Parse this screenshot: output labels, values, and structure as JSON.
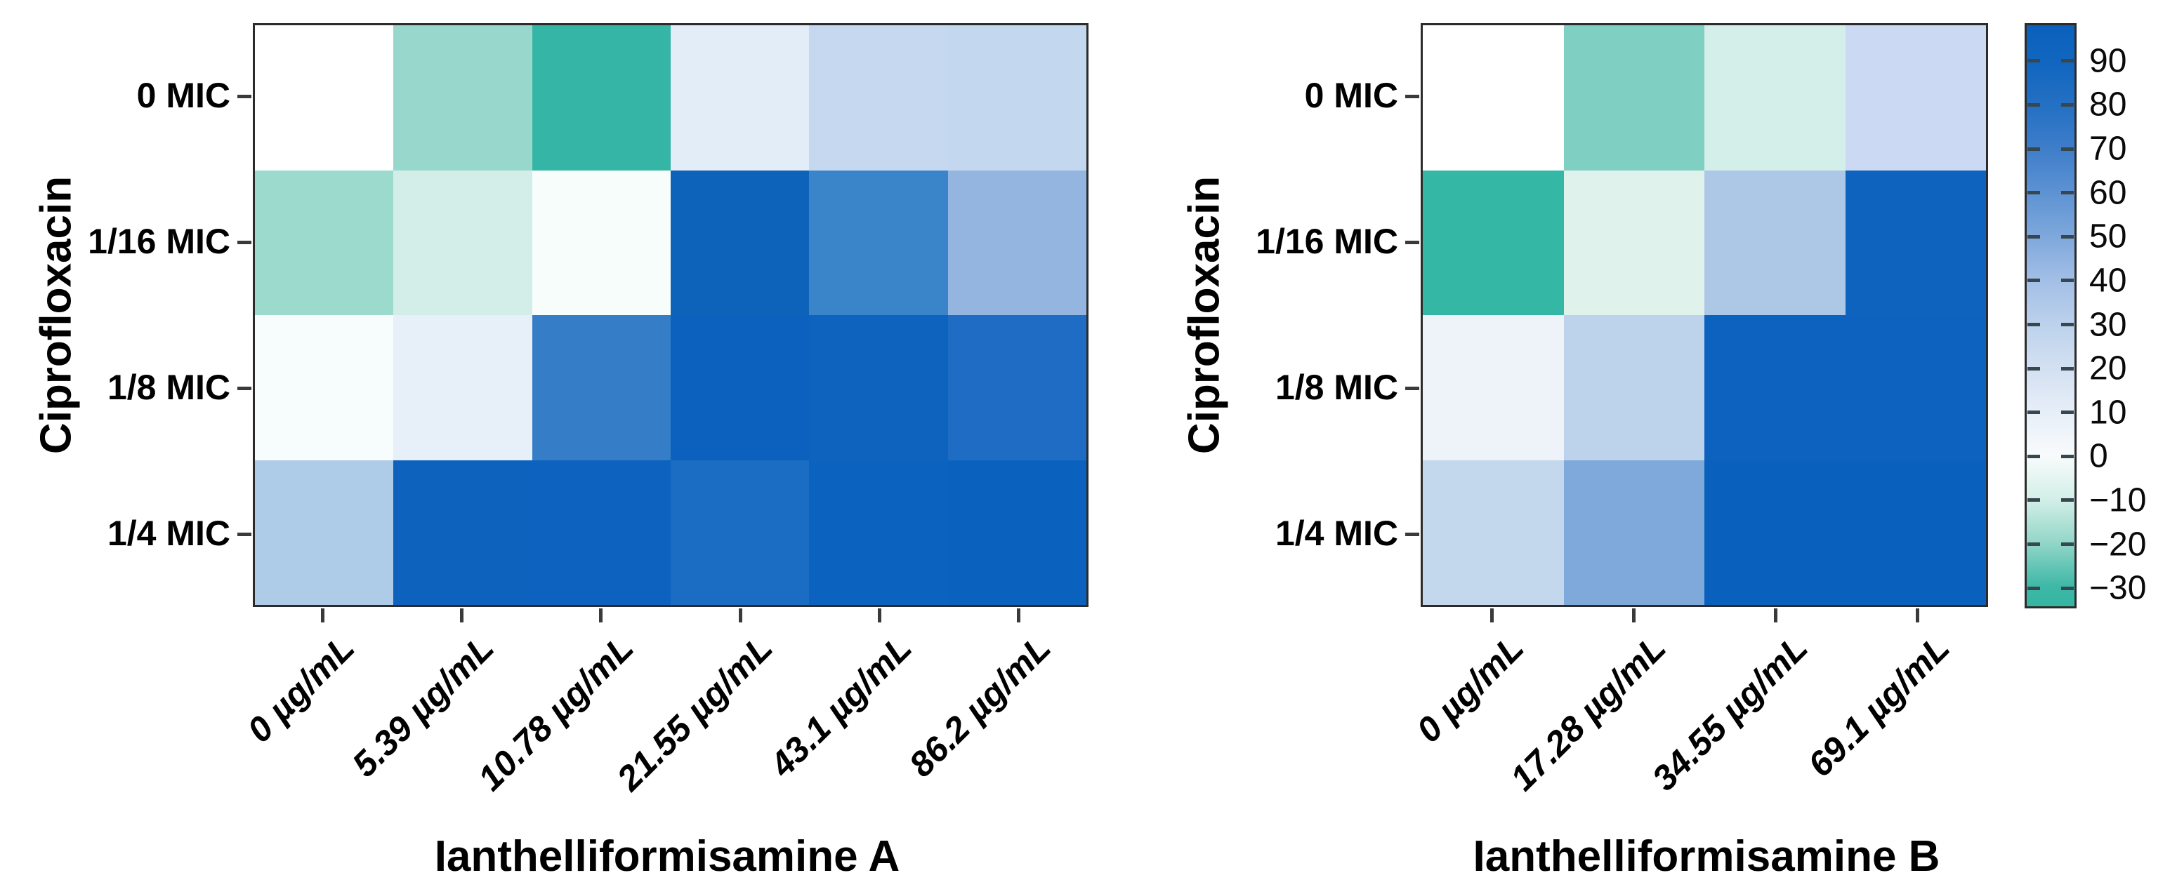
{
  "figure": {
    "background": "#FFFFFF",
    "frame_color": "#2B2B2B",
    "axis_tick_color": "#3A3A3A",
    "text_color": "#000000"
  },
  "chart_data": [
    {
      "type": "heatmap",
      "xlabel": "Ianthelliformisamine A",
      "ylabel": "Ciprofloxacin",
      "x_ticks": [
        "0 µg/mL",
        "5.39 µg/mL",
        "10.78 µg/mL",
        "21.55 µg/mL",
        "43.1 µg/mL",
        "86.2 µg/mL"
      ],
      "y_ticks": [
        "0 MIC",
        "1/16 MIC",
        "1/8 MIC",
        "1/4 MIC"
      ],
      "values": [
        [
          0,
          -18,
          -31,
          12,
          26,
          27
        ],
        [
          -18,
          -9,
          -2,
          94,
          70,
          42
        ],
        [
          -2,
          9,
          72,
          94,
          93,
          86
        ],
        [
          31,
          93,
          93,
          85,
          93,
          94
        ]
      ],
      "cell_colors": [
        [
          "#FFFFFF",
          "#98D8CC",
          "#35B5A5",
          "#E3EDF8",
          "#C6D8EF",
          "#C3D7EF"
        ],
        [
          "#9CDACE",
          "#D3EEE8",
          "#F6FDFB",
          "#0D62B9",
          "#3A85CA",
          "#94B5E0"
        ],
        [
          "#F7FDFC",
          "#E7EFF8",
          "#357EC7",
          "#0B61BD",
          "#0D63BE",
          "#1F6CC4"
        ],
        [
          "#AECBE8",
          "#0D62BE",
          "#0C62BE",
          "#1A6DC2",
          "#0C63BF",
          "#0B62BE"
        ]
      ]
    },
    {
      "type": "heatmap",
      "xlabel": "Ianthelliformisamine B",
      "ylabel": "Ciprofloxacin",
      "x_ticks": [
        "0 µg/mL",
        "17.28 µg/mL",
        "34.55 µg/mL",
        "69.1 µg/mL"
      ],
      "y_ticks": [
        "0 MIC",
        "1/16 MIC",
        "1/8 MIC",
        "1/4 MIC"
      ],
      "values": [
        [
          0,
          -22,
          -8,
          26
        ],
        [
          -31,
          -5,
          36,
          93
        ],
        [
          8,
          30,
          93,
          93
        ],
        [
          28,
          50,
          94,
          94
        ]
      ],
      "cell_colors": [
        [
          "#FFFFFF",
          "#7FCFC2",
          "#D4EEE9",
          "#CBD9F2"
        ],
        [
          "#35B7A6",
          "#DFF3EC",
          "#ADC8E6",
          "#0D63BE"
        ],
        [
          "#EEF3FA",
          "#BDD3EC",
          "#0C62BE",
          "#0C62BE"
        ],
        [
          "#C3D8ED",
          "#7FA9DA",
          "#0A61BD",
          "#0A61BD"
        ]
      ]
    }
  ],
  "colorbar": {
    "vmin": -34.6,
    "vmax": 98.6,
    "tick_values": [
      90,
      80,
      70,
      60,
      50,
      40,
      30,
      20,
      10,
      0,
      -10,
      -20,
      -30
    ],
    "tick_labels": [
      "90",
      "80",
      "70",
      "60",
      "50",
      "40",
      "30",
      "20",
      "10",
      "0",
      "−10",
      "−20",
      "−30"
    ],
    "gradient_stops": [
      {
        "value": 98.6,
        "color": "#0A60BC"
      },
      {
        "value": 90,
        "color": "#1166BF"
      },
      {
        "value": 80,
        "color": "#2470C4"
      },
      {
        "value": 70,
        "color": "#3F7ECA"
      },
      {
        "value": 60,
        "color": "#5E93D3"
      },
      {
        "value": 50,
        "color": "#7FA8DC"
      },
      {
        "value": 40,
        "color": "#A3BFE6"
      },
      {
        "value": 30,
        "color": "#BCD2EC"
      },
      {
        "value": 20,
        "color": "#D3E0F2"
      },
      {
        "value": 10,
        "color": "#E6EEF8"
      },
      {
        "value": 0,
        "color": "#F8FBFC"
      },
      {
        "value": -10,
        "color": "#D3EFE8"
      },
      {
        "value": -20,
        "color": "#93D6C8"
      },
      {
        "value": -30,
        "color": "#3EB8A7"
      },
      {
        "value": -34.6,
        "color": "#35B5A2"
      }
    ]
  }
}
